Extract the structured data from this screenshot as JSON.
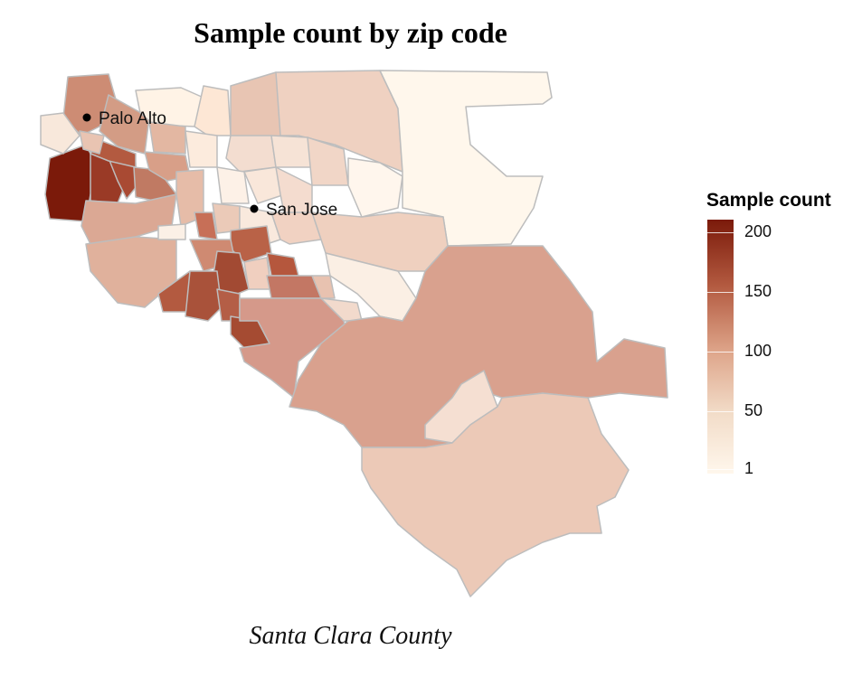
{
  "title": "Sample count by zip code",
  "caption": "Santa Clara County",
  "legend": {
    "title": "Sample count",
    "ticks": [
      "200",
      "150",
      "100",
      "50",
      "1"
    ],
    "color_low": "#fff7ec",
    "color_high": "#7b1a0a"
  },
  "cities": [
    {
      "name": "Palo Alto"
    },
    {
      "name": "San Jose"
    }
  ],
  "chart_data": {
    "type": "heatmap",
    "title": "Sample count by zip code",
    "subtitle": "Santa Clara County",
    "legend_title": "Sample count",
    "scale_range": [
      1,
      210
    ],
    "legend_ticks": [
      1,
      50,
      100,
      150,
      200
    ],
    "legend_position": "right"
  }
}
